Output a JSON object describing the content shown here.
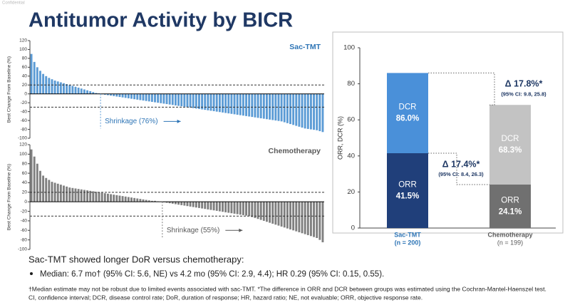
{
  "confidential": "Confidential",
  "title": "Antitumor Activity by BICR",
  "chart_data": [
    {
      "type": "waterfall",
      "series_name": "Sac-TMT",
      "color": "#5b9bd5",
      "name_color": "#2e75b6",
      "y_label": "Best Change From Baseline (%)",
      "ylim": [
        -100,
        120
      ],
      "yticks": [
        -100,
        -80,
        -60,
        -40,
        -20,
        0,
        20,
        40,
        60,
        80,
        100,
        120
      ],
      "reference_lines": [
        20,
        -30
      ],
      "annotation": "Shrinkage (76%)",
      "values": [
        90,
        72,
        60,
        52,
        45,
        40,
        36,
        33,
        30,
        28,
        26,
        24,
        22,
        20,
        18,
        16,
        14,
        12,
        10,
        8,
        6,
        4,
        2,
        1,
        -1,
        -2,
        -3,
        -4,
        -5,
        -6,
        -7,
        -8,
        -9,
        -10,
        -11,
        -12,
        -13,
        -14,
        -15,
        -16,
        -17,
        -18,
        -19,
        -20,
        -21,
        -22,
        -23,
        -24,
        -25,
        -26,
        -27,
        -28,
        -29,
        -30,
        -31,
        -32,
        -33,
        -34,
        -35,
        -36,
        -37,
        -38,
        -39,
        -40,
        -41,
        -42,
        -43,
        -44,
        -45,
        -46,
        -47,
        -48,
        -49,
        -50,
        -51,
        -52,
        -53,
        -54,
        -55,
        -56,
        -57,
        -58,
        -59,
        -60,
        -61,
        -62,
        -64,
        -66,
        -68,
        -70,
        -72,
        -74,
        -76,
        -78,
        -79,
        -80,
        -81,
        -82,
        -84,
        -86
      ]
    },
    {
      "type": "waterfall",
      "series_name": "Chemotherapy",
      "color": "#7f7f7f",
      "name_color": "#595959",
      "y_label": "Best Change From Baseline (%)",
      "ylim": [
        -100,
        120
      ],
      "yticks": [
        -100,
        -80,
        -60,
        -40,
        -20,
        0,
        20,
        40,
        60,
        80,
        100,
        120
      ],
      "reference_lines": [
        20,
        -30
      ],
      "annotation": "Shrinkage (55%)",
      "values": [
        110,
        95,
        80,
        65,
        55,
        50,
        46,
        42,
        40,
        38,
        36,
        34,
        32,
        30,
        29,
        28,
        27,
        26,
        25,
        24,
        23,
        22,
        21,
        20,
        19,
        18,
        17,
        16,
        15,
        14,
        13,
        12,
        11,
        10,
        9,
        8,
        7,
        6,
        5,
        4,
        3,
        2,
        2,
        1,
        0,
        -1,
        -2,
        -3,
        -4,
        -5,
        -6,
        -7,
        -8,
        -9,
        -10,
        -11,
        -12,
        -13,
        -14,
        -15,
        -16,
        -17,
        -18,
        -19,
        -20,
        -21,
        -22,
        -23,
        -24,
        -25,
        -26,
        -27,
        -28,
        -29,
        -30,
        -32,
        -34,
        -36,
        -38,
        -40,
        -42,
        -44,
        -46,
        -48,
        -50,
        -52,
        -54,
        -56,
        -58,
        -60,
        -62,
        -64,
        -66,
        -68,
        -70,
        -72,
        -74,
        -76,
        -80,
        -85
      ]
    },
    {
      "type": "bar",
      "y_label": "ORR, DCR (%)",
      "categories": [
        "Sac-TMT",
        "Chemotherapy"
      ],
      "category_notes": [
        "(n = 200)",
        "(n = 199)"
      ],
      "category_colors": [
        "#2e75b6",
        "#595959"
      ],
      "ylim": [
        0,
        100
      ],
      "yticks": [
        0,
        20,
        40,
        60,
        80,
        100
      ],
      "series": [
        {
          "name": "DCR",
          "colors": [
            "#4a90d9",
            "#c3c3c3"
          ],
          "values": [
            86.0,
            68.3
          ],
          "value_labels": [
            "86.0%",
            "68.3%"
          ]
        },
        {
          "name": "ORR",
          "colors": [
            "#203f7a",
            "#707070"
          ],
          "values": [
            41.5,
            24.1
          ],
          "value_labels": [
            "41.5%",
            "24.1%"
          ]
        }
      ],
      "annotations": [
        {
          "text": "Δ 17.8%*",
          "ci": "(95% CI: 9.8, 25.8)"
        },
        {
          "text": "Δ 17.4%*",
          "ci": "(95% CI: 8.4, 26.3)"
        }
      ]
    }
  ],
  "body": {
    "lead": "Sac-TMT showed longer DoR versus chemotherapy:",
    "bullet": "Median: 6.7 mo† (95% CI: 5.6, NE) vs 4.2 mo (95% CI: 2.9, 4.4); HR 0.29 (95% CI: 0.15, 0.55)."
  },
  "footnotes": [
    "†Median estimate may not be robust due to limited events associated with sac-TMT. *The difference in ORR and DCR between groups was estimated using the Cochran-Mantel-Haenszel test.",
    "CI, confidence interval; DCR, disease control rate; DoR, duration of response; HR, hazard ratio; NE, not evaluable; ORR, objective response rate."
  ]
}
